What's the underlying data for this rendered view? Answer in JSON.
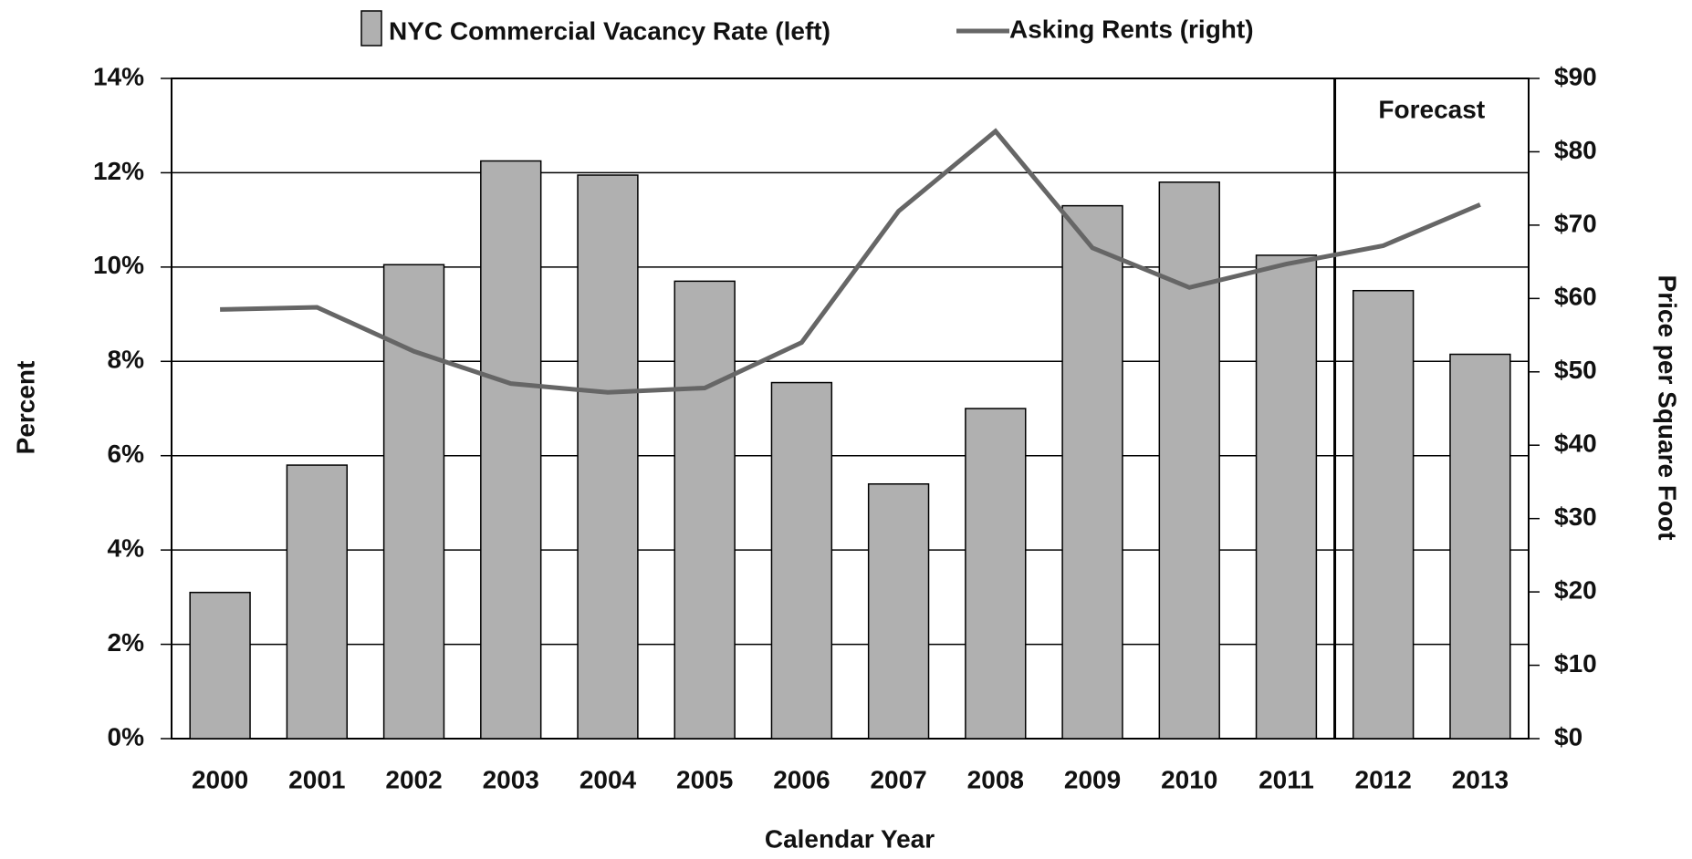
{
  "chart_data": {
    "type": "bar-line",
    "categories": [
      "2000",
      "2001",
      "2002",
      "2003",
      "2004",
      "2005",
      "2006",
      "2007",
      "2008",
      "2009",
      "2010",
      "2011",
      "2012",
      "2013"
    ],
    "series": [
      {
        "name": "NYC Commercial Vacancy Rate (left)",
        "type": "bar",
        "color": "#b0b0b0",
        "axis": "y",
        "values": [
          3.1,
          5.8,
          10.05,
          12.25,
          11.95,
          9.7,
          7.55,
          5.4,
          7.0,
          11.3,
          11.8,
          10.25,
          9.5,
          8.15
        ]
      },
      {
        "name": "Asking Rents (right)",
        "type": "line",
        "color": "#666666",
        "axis": "y2",
        "values": [
          58.5,
          58.8,
          52.8,
          48.4,
          47.2,
          47.8,
          54.0,
          71.9,
          82.8,
          66.9,
          61.5,
          64.7,
          67.2,
          72.8
        ]
      }
    ],
    "x_label": "Calendar Year",
    "y_label": "Percent",
    "y2_label": "Price per Square Foot",
    "annotation": "Forecast",
    "ylim": [
      0,
      14
    ],
    "yticks": [
      {
        "value": 0,
        "label": "0%"
      },
      {
        "value": 2,
        "label": "2%"
      },
      {
        "value": 4,
        "label": "4%"
      },
      {
        "value": 6,
        "label": "6%"
      },
      {
        "value": 8,
        "label": "8%"
      },
      {
        "value": 10,
        "label": "10%"
      },
      {
        "value": 12,
        "label": "12%"
      },
      {
        "value": 14,
        "label": "14%"
      }
    ],
    "y2lim": [
      0,
      90
    ],
    "y2ticks": [
      {
        "value": 0,
        "label": "$0"
      },
      {
        "value": 10,
        "label": "$10"
      },
      {
        "value": 20,
        "label": "$20"
      },
      {
        "value": 30,
        "label": "$30"
      },
      {
        "value": 40,
        "label": "$40"
      },
      {
        "value": 50,
        "label": "$50"
      },
      {
        "value": 60,
        "label": "$60"
      },
      {
        "value": 70,
        "label": "$70"
      },
      {
        "value": 80,
        "label": "$80"
      },
      {
        "value": 90,
        "label": "$90"
      }
    ],
    "grid": true,
    "legend": "top"
  }
}
